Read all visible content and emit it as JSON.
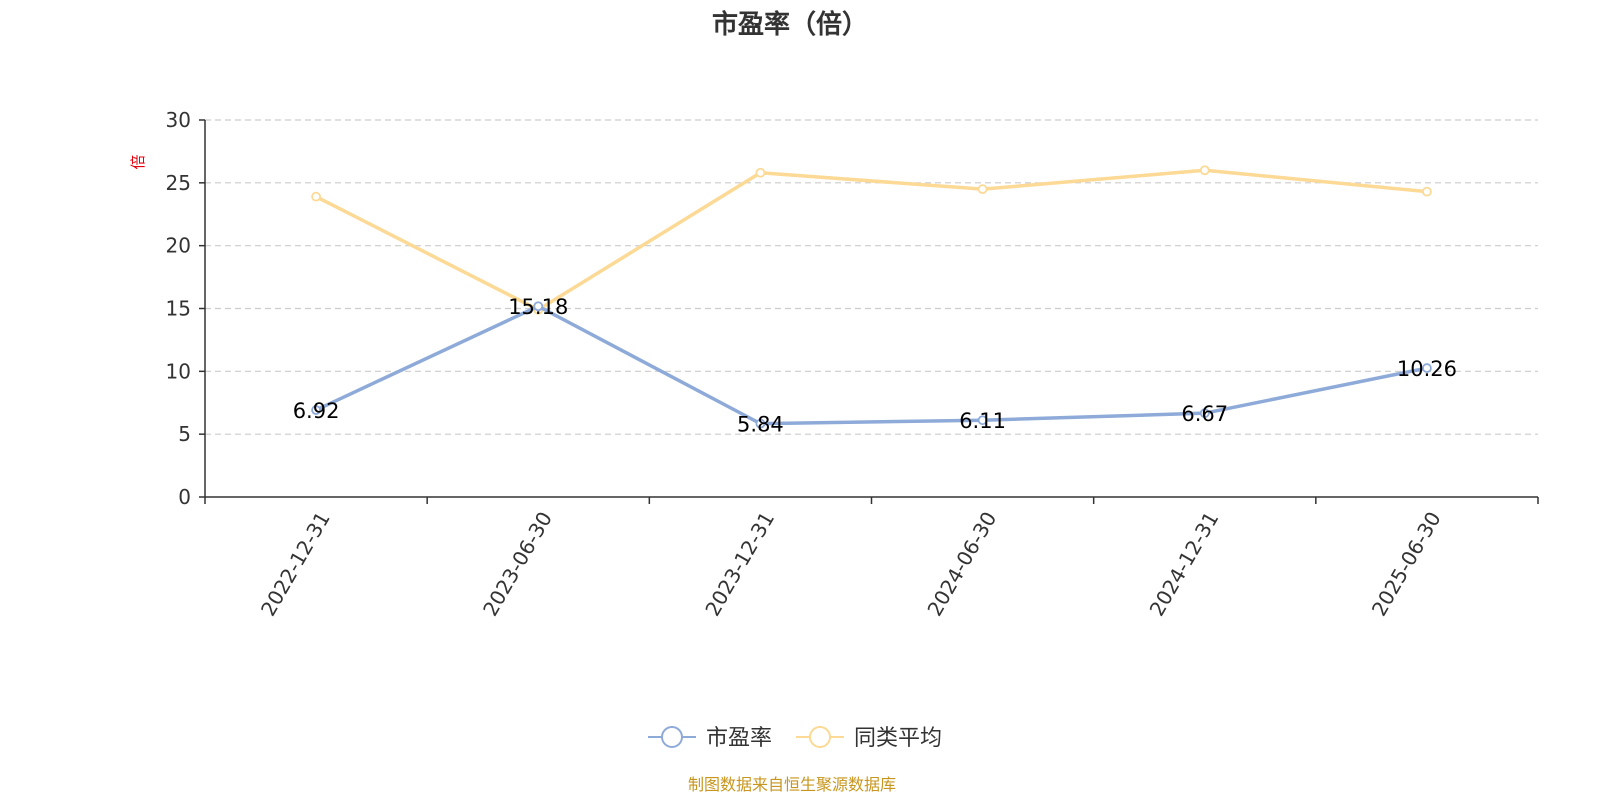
{
  "chart_data": {
    "type": "line",
    "title": "市盈率（倍）",
    "unit_label": "倍",
    "categories": [
      "2022-12-31",
      "2023-06-30",
      "2023-12-31",
      "2024-06-30",
      "2024-12-31",
      "2025-06-30"
    ],
    "ylim": [
      0,
      30
    ],
    "yticks": [
      0,
      5,
      10,
      15,
      20,
      25,
      30
    ],
    "grid": true,
    "legend_position": "bottom-center",
    "series": [
      {
        "name": "市盈率",
        "color": "#8eaad8",
        "values": [
          6.92,
          15.18,
          5.84,
          6.11,
          6.67,
          10.26
        ],
        "labels": [
          "6.92",
          "15.18",
          "5.84",
          "6.11",
          "6.67",
          "10.26"
        ]
      },
      {
        "name": "同类平均",
        "color": "#fcd995",
        "values": [
          23.9,
          14.9,
          25.8,
          24.5,
          26.0,
          24.3
        ]
      }
    ]
  },
  "footer": {
    "source": "制图数据来自恒生聚源数据库"
  }
}
